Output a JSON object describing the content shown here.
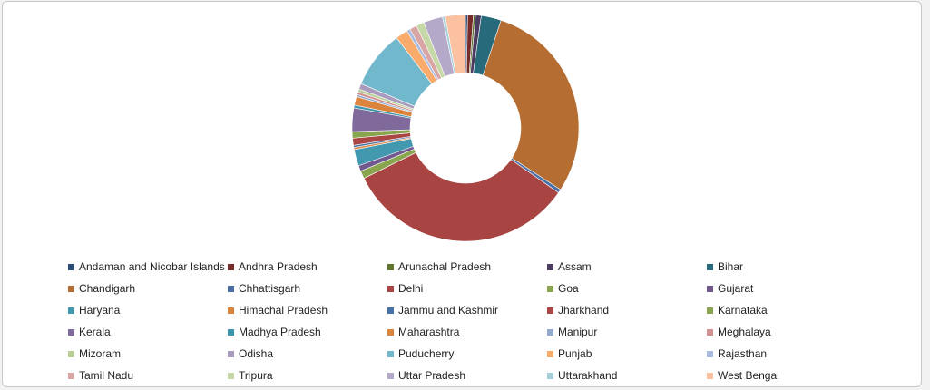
{
  "chart_data": {
    "type": "pie",
    "donut": true,
    "legend_position": "bottom",
    "categories": [
      "Andaman and Nicobar Islands",
      "Andhra Pradesh",
      "Arunachal Pradesh",
      "Assam",
      "Bihar",
      "Chandigarh",
      "Chhattisgarh",
      "Delhi",
      "Goa",
      "Gujarat",
      "Haryana",
      "Himachal Pradesh",
      "Jammu and Kashmir",
      "Jharkhand",
      "Karnataka",
      "Kerala",
      "Madhya Pradesh",
      "Maharashtra",
      "Manipur",
      "Meghalaya",
      "Mizoram",
      "Odisha",
      "Puducherry",
      "Punjab",
      "Rajasthan",
      "Tamil Nadu",
      "Tripura",
      "Uttar Pradesh",
      "Uttarakhand",
      "West Bengal"
    ],
    "values": [
      0.3,
      0.8,
      0.3,
      0.8,
      2.8,
      28.6,
      0.5,
      32.4,
      1.1,
      0.8,
      2.3,
      0.3,
      0.3,
      1.0,
      0.9,
      3.3,
      0.4,
      1.2,
      0.3,
      0.4,
      0.4,
      0.8,
      8.1,
      1.7,
      0.5,
      1.0,
      1.1,
      2.7,
      0.4,
      2.8
    ],
    "colors": [
      "#2c4d75",
      "#772c2a",
      "#5f7530",
      "#4d3b62",
      "#276a7c",
      "#b66d31",
      "#4a6fa5",
      "#a84442",
      "#89a54e",
      "#71588f",
      "#4198af",
      "#db843d",
      "#4572a7",
      "#aa4643",
      "#89a54e",
      "#80699b",
      "#3d96ae",
      "#db843d",
      "#93a9cf",
      "#d19392",
      "#b9cd96",
      "#a99bbd",
      "#72b8cd",
      "#f9ab6b",
      "#a9bbdf",
      "#d9a5a4",
      "#c6d8a6",
      "#b5a9c9",
      "#a6cfdc",
      "#fbc1a0"
    ]
  }
}
